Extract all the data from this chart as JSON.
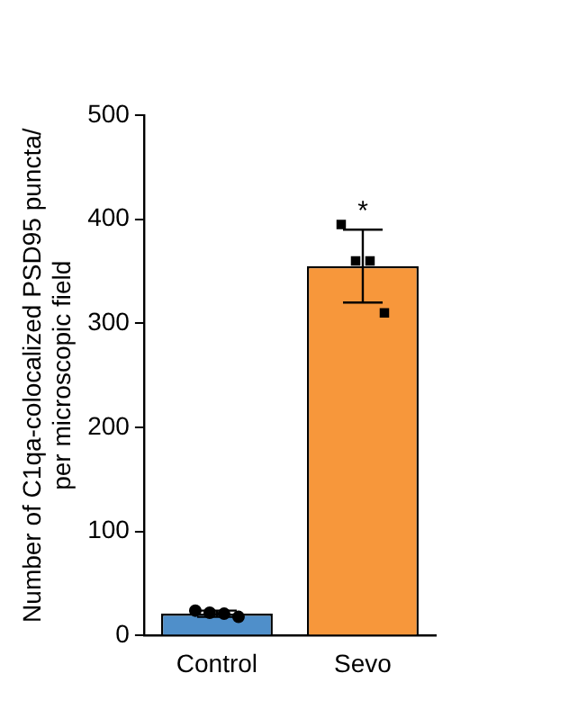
{
  "chart_data": {
    "type": "bar",
    "ylabel": "Number of C1qa-colocalized PSD95 puncta/\nper microscopic field",
    "categories": [
      "Control",
      "Sevo"
    ],
    "series": [
      {
        "colors": [
          "#4f8fca",
          "#f7973b"
        ],
        "values": [
          21,
          355
        ],
        "errors": [
          3,
          35
        ]
      },
      {
        "type": "scatter",
        "color": "#000000",
        "marker": "circle",
        "x": [
          "Control",
          "Control",
          "Control",
          "Control"
        ],
        "values": [
          24,
          22,
          21,
          18
        ]
      },
      {
        "type": "scatter",
        "color": "#000000",
        "marker": "square",
        "x": [
          "Sevo",
          "Sevo",
          "Sevo",
          "Sevo"
        ],
        "values": [
          395,
          360,
          360,
          310
        ]
      }
    ],
    "ylim": [
      0,
      500
    ],
    "yticks": [
      0,
      100,
      200,
      300,
      400,
      500
    ],
    "grid": false,
    "legend": false,
    "annotations": [
      "*"
    ]
  }
}
